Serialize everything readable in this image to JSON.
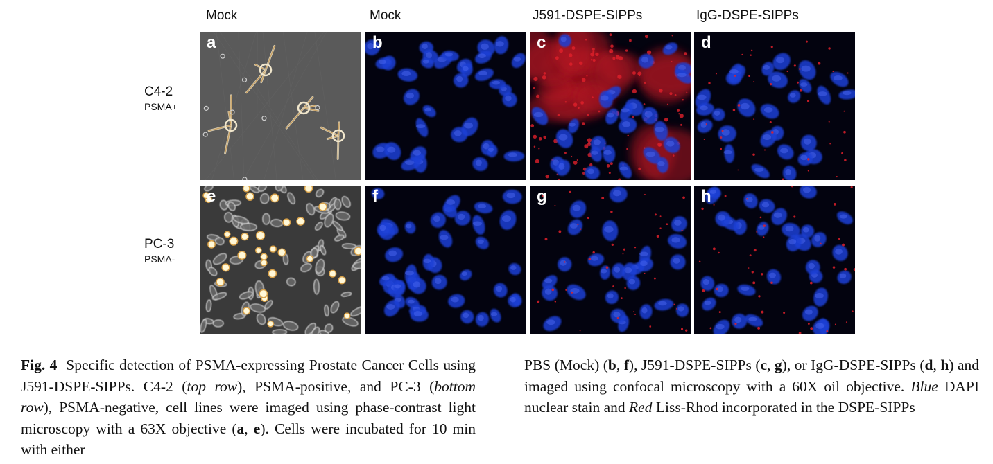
{
  "columns": [
    {
      "header": "Mock"
    },
    {
      "header": "Mock"
    },
    {
      "header": "J591-DSPE-SIPPs"
    },
    {
      "header": "IgG-DSPE-SIPPs"
    }
  ],
  "rows": [
    {
      "cell_line": "C4-2",
      "marker": "PSMA+"
    },
    {
      "cell_line": "PC-3",
      "marker": "PSMA-"
    }
  ],
  "panels": [
    {
      "letter": "a",
      "imaging": "phase-contrast"
    },
    {
      "letter": "b",
      "imaging": "confocal"
    },
    {
      "letter": "c",
      "imaging": "confocal"
    },
    {
      "letter": "d",
      "imaging": "confocal"
    },
    {
      "letter": "e",
      "imaging": "phase-contrast"
    },
    {
      "letter": "f",
      "imaging": "confocal"
    },
    {
      "letter": "g",
      "imaging": "confocal"
    },
    {
      "letter": "h",
      "imaging": "confocal"
    }
  ],
  "caption": {
    "fig_label": "Fig. 4",
    "col1": {
      "t1": "Specific detection of PSMA-expressing Prostate Cancer Cells using J591-DSPE-SIPPs. C4-2 (",
      "i1": "top row",
      "t2": "), PSMA-positive, and PC-3 (",
      "i2": "bottom row",
      "t3": "), PSMA-negative, cell lines were imaged using phase-contrast light microscopy with a 63X objective (",
      "b1": "a",
      "t4": ", ",
      "b2": "e",
      "t5": "). Cells were incubated for 10 min with either"
    },
    "col2": {
      "t1": "PBS (Mock) (",
      "b1": "b",
      "t2": ", ",
      "b2": "f",
      "t3": "), J591-DSPE-SIPPs (",
      "b3": "c",
      "t4": ", ",
      "b4": "g",
      "t5": "), or IgG-DSPE-SIPPs (",
      "b5": "d",
      "t6": ", ",
      "b6": "h",
      "t7": ") and imaged using confocal microscopy with a 60X oil objective. ",
      "i1": "Blue",
      "t8": " DAPI nuclear stain and ",
      "i2": "Red",
      "t9": " Liss-Rhod incorporated in the DSPE-SIPPs"
    }
  },
  "colors": {
    "nucleus_blue": "#1f3fd6",
    "background_dark": "#03030f",
    "liss_rhod_red": "#e0202a",
    "phase_contrast_gray": "#5a5a5a"
  }
}
